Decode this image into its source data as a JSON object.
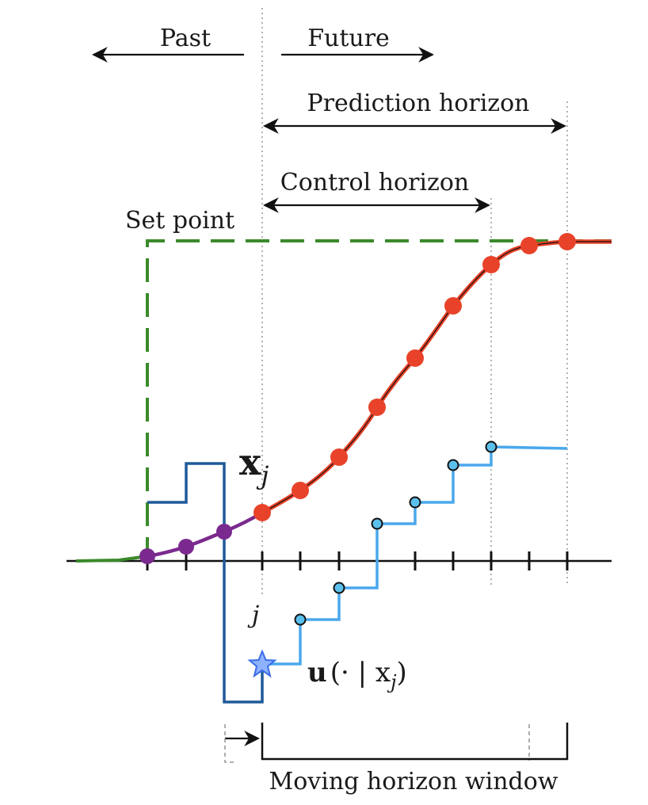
{
  "labels": {
    "past": "Past",
    "future": "Future",
    "prediction_horizon": "Prediction horizon",
    "control_horizon": "Control horizon",
    "set_point": "Set point",
    "state_symbol": "x",
    "state_subscript": "j",
    "tick_j": "j",
    "control_u": "u",
    "control_args": "(· | x",
    "control_sub": "j",
    "control_close": ")",
    "moving_window": "Moving horizon window"
  },
  "colors": {
    "setpoint": "#3a8a2a",
    "past_trajectory": "#7a2a8e",
    "predicted_trajectory": "#e8432a",
    "past_input": "#1f5a99",
    "future_input": "#4aa8ec",
    "input_marker": "#5cc0ec",
    "star": "#3b6de8"
  },
  "icons": {
    "current_input_marker": "star-icon",
    "input_step_marker": "circle-marker-icon",
    "trajectory_marker": "dot-marker-icon"
  }
}
